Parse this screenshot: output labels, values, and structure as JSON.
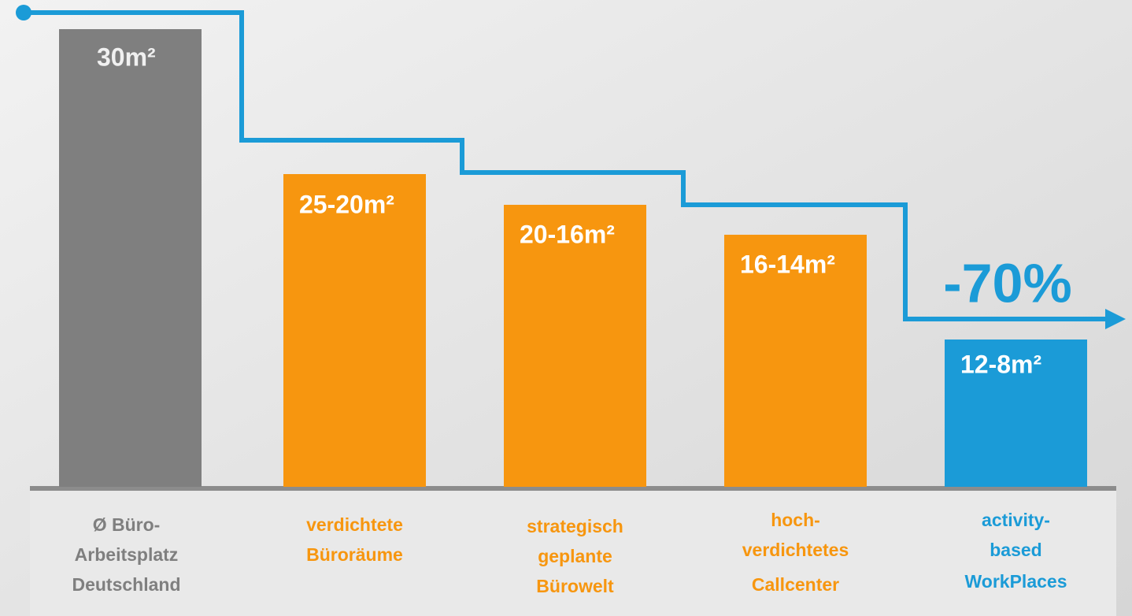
{
  "annotation": "-70%",
  "bars": [
    {
      "label": "30m²",
      "category": [
        "Ø Büro-",
        "Arbeitsplatz",
        "Deutschland"
      ],
      "color": "#7f7f7f",
      "text_color": "#7f7f7f"
    },
    {
      "label": "25-20m²",
      "category": [
        "verdichtete",
        "Büroräume"
      ],
      "color": "#f7960f",
      "text_color": "#f7960f"
    },
    {
      "label": "20-16m²",
      "category": [
        "strategisch",
        "geplante",
        "Bürowelt"
      ],
      "color": "#f7960f",
      "text_color": "#f7960f"
    },
    {
      "label": "16-14m²",
      "category": [
        "hoch-",
        "verdichtetes",
        "Callcenter"
      ],
      "color": "#f7960f",
      "text_color": "#f7960f"
    },
    {
      "label": "12-8m²",
      "category": [
        "activity-",
        "based",
        "WorkPlaces"
      ],
      "color": "#1b9bd7",
      "text_color": "#1b9bd7"
    }
  ],
  "line_color": "#1b9bd7"
}
